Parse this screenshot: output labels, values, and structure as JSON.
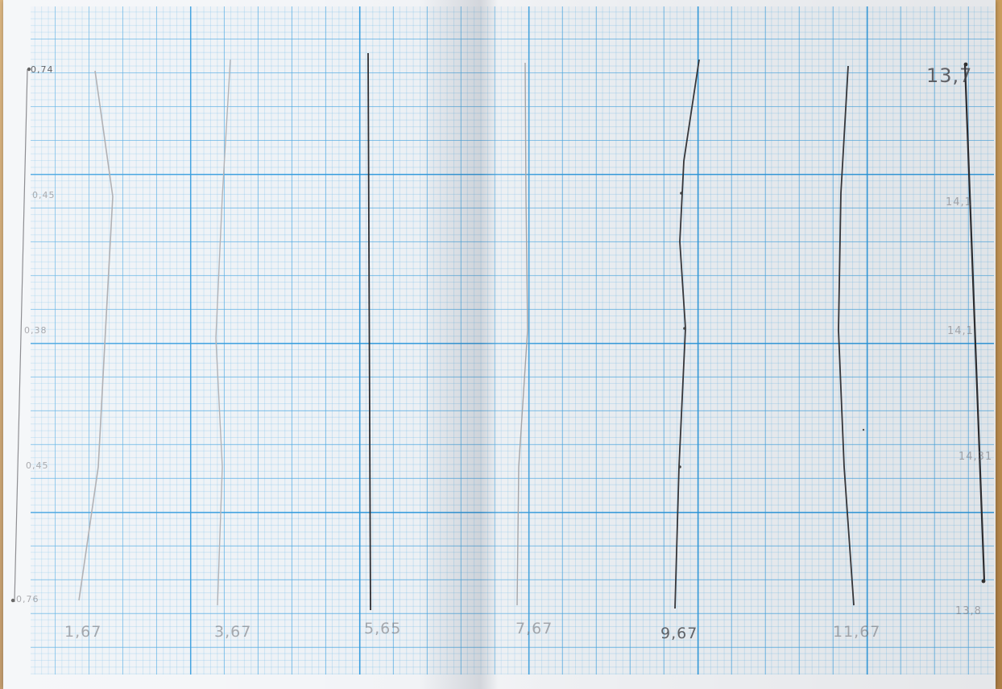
{
  "left_axis_labels": [
    "0,74",
    "0,45",
    "0,38",
    "0,45",
    "0,76"
  ],
  "right_axis_labels": [
    "13,7",
    "14,1",
    "14,1",
    "14,31",
    "13,8"
  ],
  "bottom_labels": [
    "1,67",
    "3,67",
    "5,65",
    "7,67",
    "9,67",
    "11,67"
  ],
  "colors": {
    "grid_major": "#2896dc",
    "grid_minor": "#6eb9e6",
    "pencil_dark": "#3a3a3f",
    "pencil_light": "#a9a9ad",
    "paper": "#eef2f6"
  }
}
